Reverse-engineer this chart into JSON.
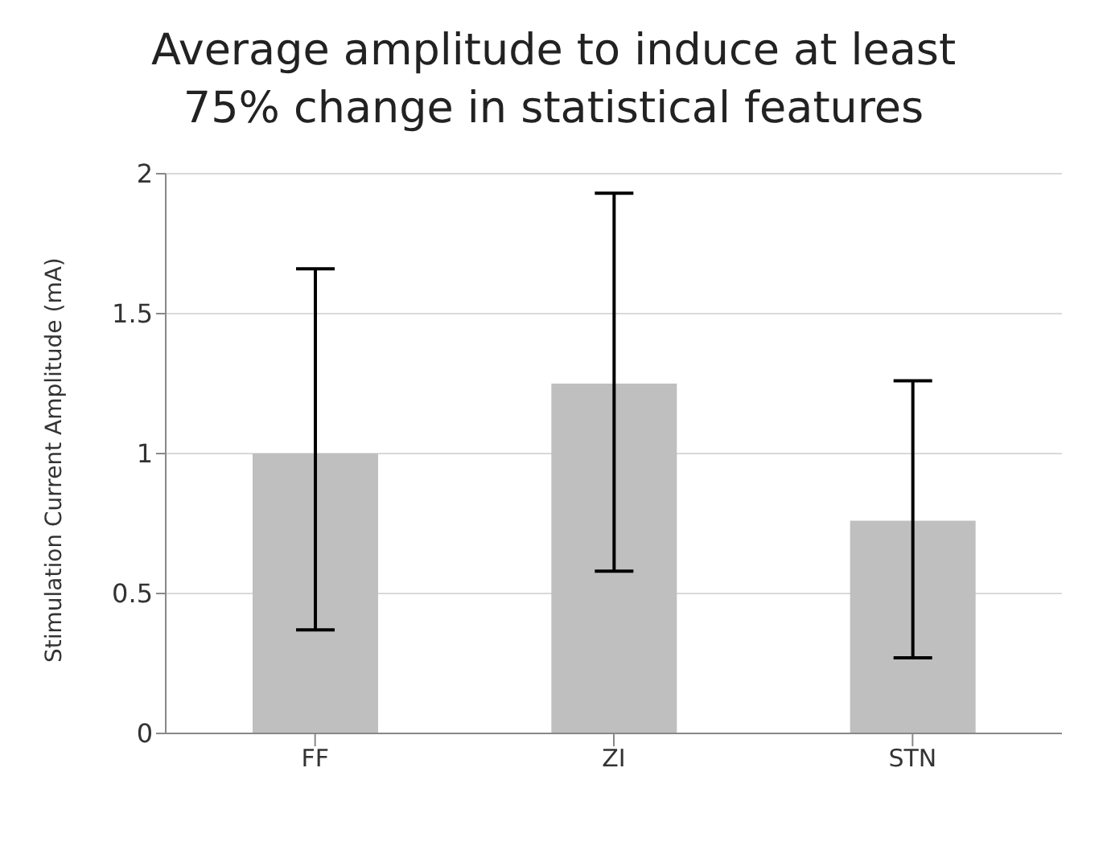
{
  "chart_data": {
    "type": "bar",
    "title": "Average amplitude to induce at least 75% change in statistical features",
    "ylabel": "Stimulation Current Amplitude (mA)",
    "categories": [
      "FF",
      "ZI",
      "STN"
    ],
    "values": [
      1.0,
      1.25,
      0.76
    ],
    "color": "#bfbfbf",
    "errors": [
      [
        0.37,
        1.66
      ],
      [
        0.58,
        1.93
      ],
      [
        0.27,
        1.26
      ]
    ],
    "ylim": [
      0,
      2
    ],
    "yticks": [
      0,
      0.5,
      1,
      1.5,
      2
    ],
    "grid": "y",
    "legend": false
  }
}
